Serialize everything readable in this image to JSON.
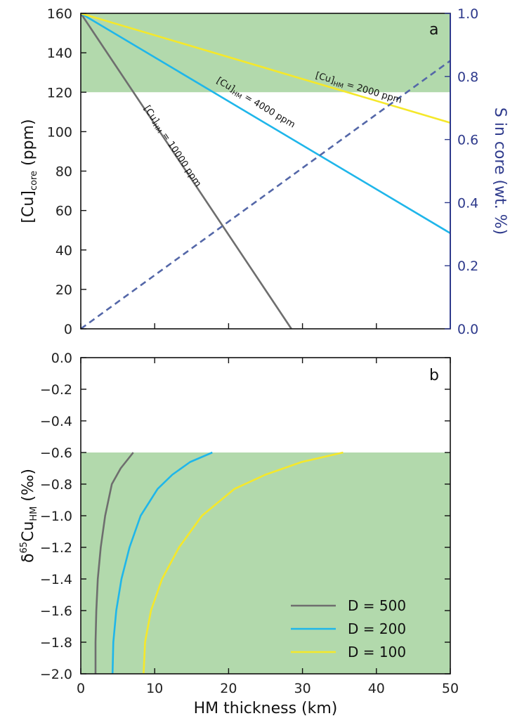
{
  "colors": {
    "shade": "#b2d9ac",
    "gray": "#6e6e6e",
    "cyan": "#1fb6ea",
    "yellow": "#f5e82a",
    "dashed": "#5467a8",
    "right_axis": "#2e3a8c"
  },
  "chart_data": [
    {
      "type": "line",
      "panel_label": "a",
      "xlabel": "",
      "ylabel": "[Cu]core (ppm)",
      "ylabel_main": "[Cu]",
      "ylabel_sub": "core",
      "ylabel_tail": " (ppm)",
      "y2label": "S in core (wt. %)",
      "xlim": [
        0,
        50
      ],
      "ylim": [
        0,
        160
      ],
      "y2lim": [
        0,
        1.0
      ],
      "x_ticks": [
        0,
        10,
        20,
        30,
        40,
        50
      ],
      "y_ticks": [
        0,
        20,
        40,
        60,
        80,
        100,
        120,
        140,
        160
      ],
      "y2_ticks": [
        "0.0",
        "0.2",
        "0.4",
        "0.6",
        "0.8",
        "1.0"
      ],
      "shaded_region": {
        "y_from": 120,
        "y_to": 160
      },
      "series": [
        {
          "label_main": "[Cu]",
          "label_sub": "HM",
          "label_tail": " = 10000 ppm",
          "color_key": "gray",
          "x": [
            0,
            28.5
          ],
          "y": [
            160,
            0
          ]
        },
        {
          "label_main": "[Cu]",
          "label_sub": "HM",
          "label_tail": " = 4000 ppm",
          "color_key": "cyan",
          "x": [
            0,
            50
          ],
          "y": [
            160,
            48.5
          ]
        },
        {
          "label_main": "[Cu]",
          "label_sub": "HM",
          "label_tail": " = 2000 ppm",
          "color_key": "yellow",
          "x": [
            0,
            50
          ],
          "y": [
            160,
            104.5
          ]
        },
        {
          "axis": "right",
          "style": "dashed",
          "color_key": "dashed",
          "x": [
            0,
            50
          ],
          "y": [
            0,
            0.85
          ]
        }
      ]
    },
    {
      "type": "line",
      "panel_label": "b",
      "xlabel": "HM thickness (km)",
      "ylabel": "δ65CuHM (‰)",
      "ylabel_main": "δ",
      "ylabel_sup": "65",
      "ylabel_mid": "Cu",
      "ylabel_sub": "HM",
      "ylabel_tail": " (‰)",
      "xlim": [
        0,
        50
      ],
      "ylim": [
        -2.0,
        0.0
      ],
      "x_ticks": [
        0,
        10,
        20,
        30,
        40,
        50
      ],
      "y_ticks": [
        "0.0",
        "−0.2",
        "−0.4",
        "−0.6",
        "−0.8",
        "−1.0",
        "−1.2",
        "−1.4",
        "−1.6",
        "−1.8",
        "−2.0"
      ],
      "shaded_region": {
        "y_from": -2.0,
        "y_to": -0.6
      },
      "legend_position": "bottom-right",
      "series": [
        {
          "name": "D = 500",
          "color_key": "gray",
          "x": [
            2.0,
            2.0,
            2.1,
            2.3,
            2.7,
            3.3,
            4.2,
            5.4,
            7.1
          ],
          "y": [
            -2.0,
            -1.8,
            -1.6,
            -1.4,
            -1.2,
            -1.0,
            -0.8,
            -0.7,
            -0.6
          ]
        },
        {
          "name": "D = 200",
          "color_key": "cyan",
          "x": [
            4.3,
            4.4,
            4.8,
            5.5,
            6.6,
            8.1,
            10.4,
            12.4,
            14.8,
            17.8
          ],
          "y": [
            -2.0,
            -1.8,
            -1.6,
            -1.4,
            -1.2,
            -1.0,
            -0.83,
            -0.74,
            -0.66,
            -0.6
          ]
        },
        {
          "name": "D = 100",
          "color_key": "yellow",
          "x": [
            8.5,
            8.7,
            9.5,
            11.0,
            13.3,
            16.4,
            20.8,
            25.0,
            29.9,
            35.5
          ],
          "y": [
            -2.0,
            -1.8,
            -1.6,
            -1.4,
            -1.2,
            -1.0,
            -0.83,
            -0.74,
            -0.66,
            -0.6
          ]
        }
      ]
    }
  ]
}
